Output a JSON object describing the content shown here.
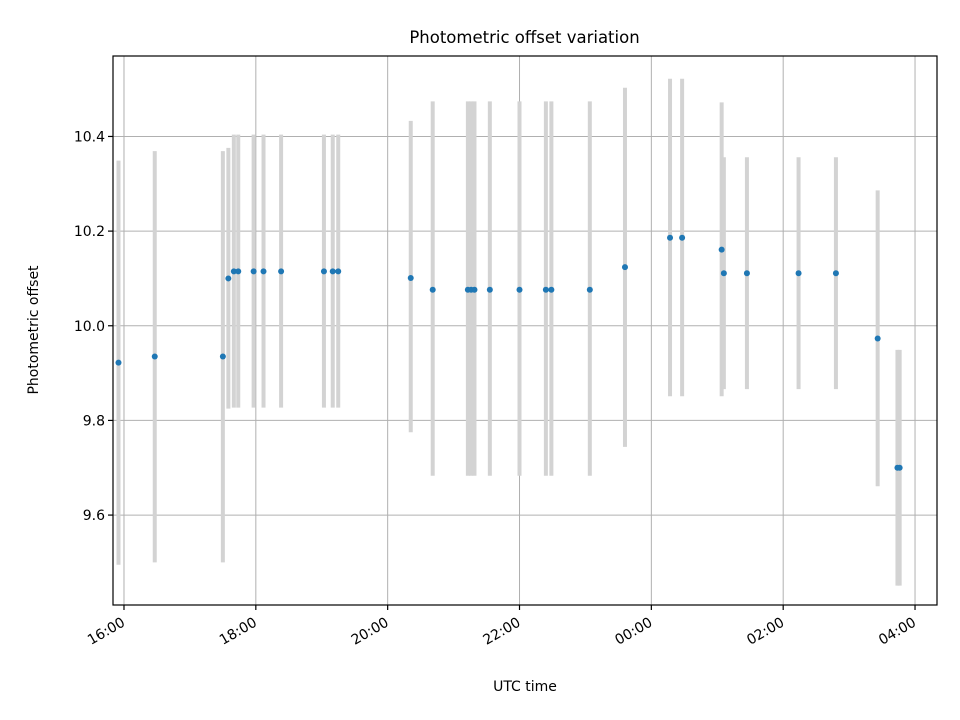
{
  "chart_data": {
    "type": "scatter",
    "title": "Photometric offset variation",
    "xlabel": "UTC time",
    "ylabel": "Photometric offset",
    "x_axis": {
      "type": "time",
      "range": [
        "15:50",
        "04:20"
      ],
      "ticks": [
        "16:00",
        "18:00",
        "20:00",
        "22:00",
        "00:00",
        "02:00",
        "04:00"
      ]
    },
    "y_axis": {
      "range": [
        9.41,
        10.57
      ],
      "ticks": [
        9.6,
        9.8,
        10.0,
        10.2,
        10.4
      ],
      "tick_labels": [
        "9.6",
        "9.8",
        "10.0",
        "10.2",
        "10.4"
      ]
    },
    "grid": true,
    "colors": {
      "point": "#1f77b4",
      "errorbar": "#d3d3d3",
      "grid": "#b0b0b0"
    },
    "points": [
      {
        "x": "15:55",
        "y": 9.922,
        "ylow": 9.495,
        "yhigh": 10.349
      },
      {
        "x": "16:28",
        "y": 9.935,
        "ylow": 9.5,
        "yhigh": 10.369
      },
      {
        "x": "17:30",
        "y": 9.935,
        "ylow": 9.5,
        "yhigh": 10.369
      },
      {
        "x": "17:35",
        "y": 10.1,
        "ylow": 9.825,
        "yhigh": 10.376
      },
      {
        "x": "17:40",
        "y": 10.115,
        "ylow": 9.827,
        "yhigh": 10.404
      },
      {
        "x": "17:44",
        "y": 10.115,
        "ylow": 9.827,
        "yhigh": 10.404
      },
      {
        "x": "17:58",
        "y": 10.115,
        "ylow": 9.827,
        "yhigh": 10.404
      },
      {
        "x": "18:07",
        "y": 10.115,
        "ylow": 9.827,
        "yhigh": 10.404
      },
      {
        "x": "18:23",
        "y": 10.115,
        "ylow": 9.827,
        "yhigh": 10.404
      },
      {
        "x": "19:02",
        "y": 10.115,
        "ylow": 9.827,
        "yhigh": 10.404
      },
      {
        "x": "19:10",
        "y": 10.115,
        "ylow": 9.827,
        "yhigh": 10.404
      },
      {
        "x": "19:15",
        "y": 10.115,
        "ylow": 9.827,
        "yhigh": 10.404
      },
      {
        "x": "20:21",
        "y": 10.101,
        "ylow": 9.775,
        "yhigh": 10.433
      },
      {
        "x": "20:41",
        "y": 10.076,
        "ylow": 9.683,
        "yhigh": 10.474
      },
      {
        "x": "21:13",
        "y": 10.076,
        "ylow": 9.683,
        "yhigh": 10.474
      },
      {
        "x": "21:16",
        "y": 10.076,
        "ylow": 9.683,
        "yhigh": 10.474
      },
      {
        "x": "21:19",
        "y": 10.076,
        "ylow": 9.683,
        "yhigh": 10.474
      },
      {
        "x": "21:33",
        "y": 10.076,
        "ylow": 9.683,
        "yhigh": 10.474
      },
      {
        "x": "22:00",
        "y": 10.076,
        "ylow": 9.683,
        "yhigh": 10.474
      },
      {
        "x": "22:24",
        "y": 10.076,
        "ylow": 9.683,
        "yhigh": 10.474
      },
      {
        "x": "22:29",
        "y": 10.076,
        "ylow": 9.683,
        "yhigh": 10.474
      },
      {
        "x": "23:04",
        "y": 10.076,
        "ylow": 9.683,
        "yhigh": 10.474
      },
      {
        "x": "23:36",
        "y": 10.124,
        "ylow": 9.744,
        "yhigh": 10.503
      },
      {
        "x": "00:17",
        "y": 10.186,
        "ylow": 9.851,
        "yhigh": 10.522
      },
      {
        "x": "00:28",
        "y": 10.186,
        "ylow": 9.851,
        "yhigh": 10.522
      },
      {
        "x": "01:04",
        "y": 10.161,
        "ylow": 9.851,
        "yhigh": 10.472
      },
      {
        "x": "01:06",
        "y": 10.111,
        "ylow": 9.866,
        "yhigh": 10.356
      },
      {
        "x": "01:27",
        "y": 10.111,
        "ylow": 9.866,
        "yhigh": 10.356
      },
      {
        "x": "02:14",
        "y": 10.111,
        "ylow": 9.866,
        "yhigh": 10.356
      },
      {
        "x": "02:48",
        "y": 10.111,
        "ylow": 9.866,
        "yhigh": 10.356
      },
      {
        "x": "03:26",
        "y": 9.973,
        "ylow": 9.661,
        "yhigh": 10.286
      },
      {
        "x": "03:44",
        "y": 9.7,
        "ylow": 9.451,
        "yhigh": 9.949
      },
      {
        "x": "03:46",
        "y": 9.7,
        "ylow": 9.451,
        "yhigh": 9.949
      }
    ]
  }
}
